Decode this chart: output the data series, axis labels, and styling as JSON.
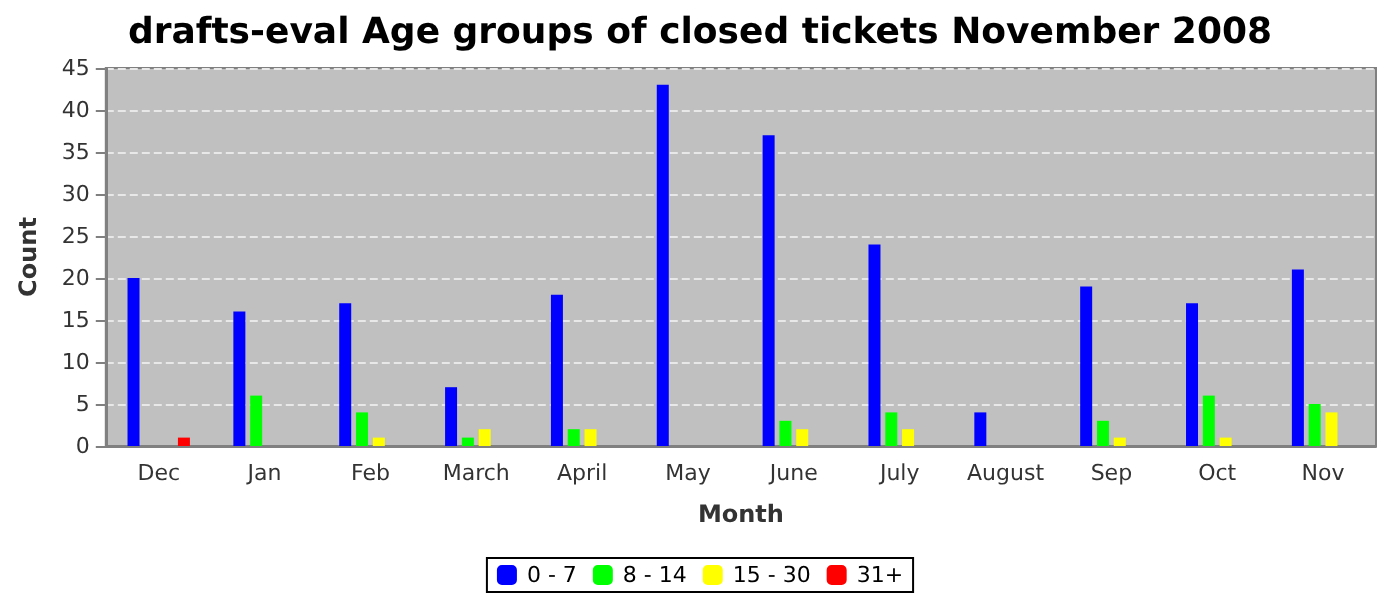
{
  "chart_data": {
    "type": "bar",
    "title": "drafts-eval Age groups of closed tickets November 2008",
    "xlabel": "Month",
    "ylabel": "Count",
    "categories": [
      "Dec",
      "Jan",
      "Feb",
      "March",
      "April",
      "May",
      "June",
      "July",
      "August",
      "Sep",
      "Oct",
      "Nov"
    ],
    "series": [
      {
        "name": "0 - 7",
        "color": "#0000ff",
        "values": [
          20,
          16,
          17,
          7,
          18,
          43,
          37,
          24,
          4,
          19,
          17,
          21
        ]
      },
      {
        "name": "8 - 14",
        "color": "#00ff00",
        "values": [
          0,
          6,
          4,
          1,
          2,
          0,
          3,
          4,
          0,
          3,
          6,
          5
        ]
      },
      {
        "name": "15 - 30",
        "color": "#ffff00",
        "values": [
          0,
          0,
          1,
          2,
          2,
          0,
          2,
          2,
          0,
          1,
          1,
          4
        ]
      },
      {
        "name": "31+",
        "color": "#ff0000",
        "values": [
          1,
          0,
          0,
          0,
          0,
          0,
          0,
          0,
          0,
          0,
          0,
          0
        ]
      }
    ],
    "ylim": [
      0,
      45
    ],
    "yticks": [
      0,
      5,
      10,
      15,
      20,
      25,
      30,
      35,
      40,
      45
    ],
    "grid": "y",
    "legend": "bottom"
  }
}
